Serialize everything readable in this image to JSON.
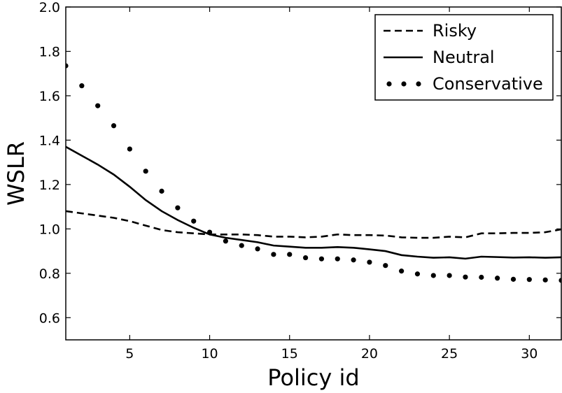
{
  "chart_data": {
    "type": "line",
    "xlabel": "Policy id",
    "ylabel": "WSLR",
    "xlim": [
      1,
      32
    ],
    "ylim": [
      0.5,
      2.0
    ],
    "xticks": [
      5,
      10,
      15,
      20,
      25,
      30
    ],
    "yticks": [
      0.6,
      0.8,
      1.0,
      1.2,
      1.4,
      1.6,
      1.8,
      2.0
    ],
    "xtick_labels": [
      "5",
      "10",
      "15",
      "20",
      "25",
      "30"
    ],
    "ytick_labels": [
      "0.6",
      "0.8",
      "1.0",
      "1.2",
      "1.4",
      "1.6",
      "1.8",
      "2.0"
    ],
    "grid": false,
    "legend_position": "top-right",
    "x": [
      1,
      2,
      3,
      4,
      5,
      6,
      7,
      8,
      9,
      10,
      11,
      12,
      13,
      14,
      15,
      16,
      17,
      18,
      19,
      20,
      21,
      22,
      23,
      24,
      25,
      26,
      27,
      28,
      29,
      30,
      31,
      32
    ],
    "series": [
      {
        "name": "Risky",
        "style": "dashed",
        "color": "#000000",
        "values": [
          1.08,
          1.07,
          1.06,
          1.05,
          1.035,
          1.015,
          0.995,
          0.985,
          0.98,
          0.975,
          0.975,
          0.975,
          0.972,
          0.965,
          0.965,
          0.962,
          0.965,
          0.975,
          0.972,
          0.972,
          0.97,
          0.962,
          0.96,
          0.96,
          0.965,
          0.962,
          0.98,
          0.98,
          0.982,
          0.982,
          0.985,
          0.998
        ]
      },
      {
        "name": "Neutral",
        "style": "solid",
        "color": "#000000",
        "values": [
          1.37,
          1.33,
          1.29,
          1.245,
          1.19,
          1.13,
          1.08,
          1.04,
          1.005,
          0.975,
          0.96,
          0.95,
          0.94,
          0.925,
          0.92,
          0.915,
          0.915,
          0.918,
          0.915,
          0.908,
          0.9,
          0.882,
          0.875,
          0.87,
          0.872,
          0.866,
          0.875,
          0.873,
          0.871,
          0.872,
          0.87,
          0.872
        ]
      },
      {
        "name": "Conservative",
        "style": "dotted",
        "color": "#000000",
        "values": [
          1.735,
          1.645,
          1.555,
          1.465,
          1.36,
          1.26,
          1.17,
          1.095,
          1.035,
          0.985,
          0.945,
          0.925,
          0.91,
          0.885,
          0.885,
          0.87,
          0.865,
          0.865,
          0.86,
          0.85,
          0.835,
          0.81,
          0.797,
          0.79,
          0.79,
          0.783,
          0.782,
          0.778,
          0.773,
          0.772,
          0.77,
          0.768
        ]
      }
    ]
  }
}
